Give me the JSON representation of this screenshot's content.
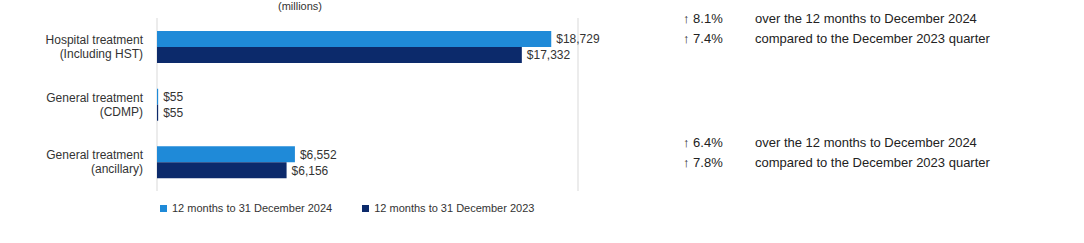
{
  "chart_data": {
    "type": "bar",
    "orientation": "horizontal",
    "subtitle": "(millions)",
    "categories": [
      "Hospital treatment\n(Including HST)",
      "General treatment\n(CDMP)",
      "General treatment\n(ancillary)"
    ],
    "series": [
      {
        "name": "12 months to 31 December 2024",
        "color": "#1f8ad8",
        "values": [
          18729,
          55,
          6552
        ],
        "value_labels": [
          "$18,729",
          "$55",
          "$6,552"
        ]
      },
      {
        "name": "12 months to 31 December 2023",
        "color": "#0c2a6b",
        "values": [
          17332,
          55,
          6156
        ],
        "value_labels": [
          "$17,332",
          "$55",
          "$6,156"
        ]
      }
    ],
    "xlim": [
      0,
      20000
    ],
    "xticks": [
      0,
      10000,
      20000
    ],
    "grid": true,
    "tick_labels": "y",
    "data_labels": true,
    "legend": "bottom",
    "annotations": [
      [
        {
          "change": "↑ 8.1%",
          "text": "over the 12 months to December 2024"
        },
        {
          "change": "↑ 7.4%",
          "text": "compared to the December 2023 quarter"
        }
      ],
      [
        {
          "change": "↑ 6.4%",
          "text": "over the 12 months to December 2024"
        },
        {
          "change": "↑ 7.8%",
          "text": "compared to the December 2023 quarter"
        }
      ]
    ]
  }
}
